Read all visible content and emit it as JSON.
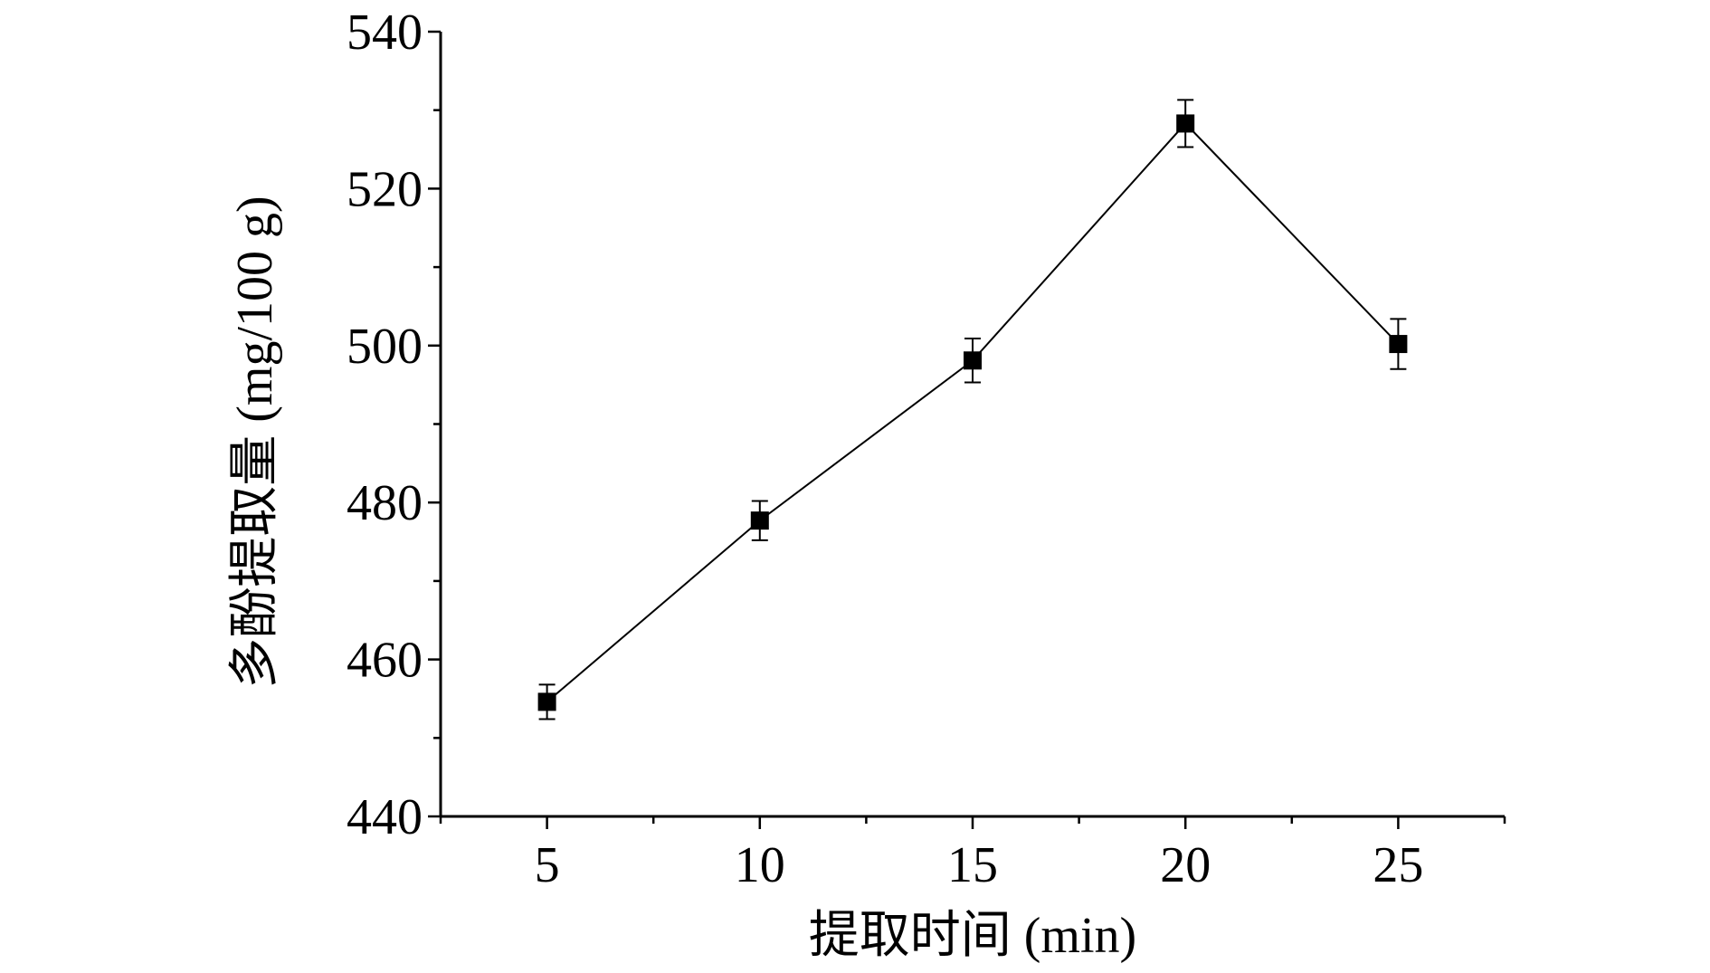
{
  "chart_data": {
    "type": "line",
    "xlabel": "提取时间 (min)",
    "ylabel": "多酚提取量 (mg/100 g)",
    "x": [
      5,
      10,
      15,
      20,
      25
    ],
    "xticks": [
      "5",
      "10",
      "15",
      "20",
      "25"
    ],
    "xlim": [
      2.5,
      27.5
    ],
    "ylim": [
      440,
      540
    ],
    "yticks": [
      "440",
      "460",
      "480",
      "500",
      "520",
      "540"
    ],
    "series": [
      {
        "values": [
          454.6,
          477.7,
          498.1,
          528.3,
          500.2
        ],
        "errors": [
          2.2,
          2.5,
          2.8,
          3.0,
          3.2
        ],
        "color": "#000000",
        "marker": "square"
      }
    ],
    "grid": false,
    "legend": false
  }
}
